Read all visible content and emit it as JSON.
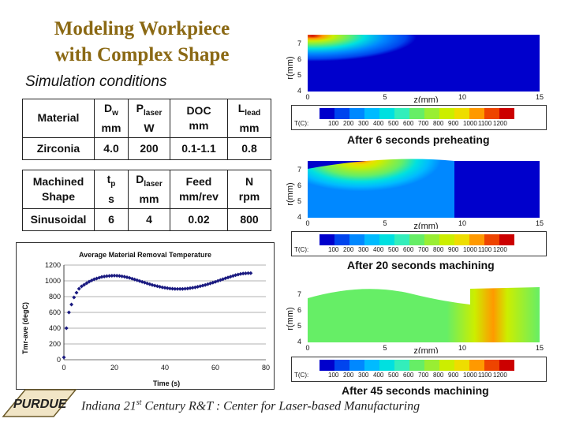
{
  "title": {
    "line1": "Modeling Workpiece",
    "line2": "with Complex Shape"
  },
  "subtitle": "Simulation conditions",
  "table1": {
    "headers": [
      "Material",
      "D",
      "w",
      "mm",
      "P",
      "laser",
      "W",
      "DOC",
      "mm",
      "L",
      "lead",
      "mm"
    ],
    "row": [
      "Zirconia",
      "4.0",
      "200",
      "0.1-1.1",
      "0.8"
    ]
  },
  "table2": {
    "h_machined": "Machined",
    "h_shape": "Shape",
    "h_t": "t",
    "h_t_sub": "p",
    "h_t_unit": "s",
    "h_d": "D",
    "h_d_sub": "laser",
    "h_d_unit": "mm",
    "h_feed": "Feed",
    "h_feed_unit": "mm/rev",
    "h_n": "N",
    "h_n_unit": "rpm",
    "row": [
      "Sinusoidal",
      "6",
      "4",
      "0.02",
      "800"
    ]
  },
  "chart_data": {
    "type": "scatter",
    "title": "Average Material Removal Temperature",
    "xlabel": "Time  (s)",
    "ylabel": "Tmr-ave (degC)",
    "xlim": [
      0,
      80
    ],
    "ylim": [
      0,
      1200
    ],
    "xticks": [
      "0",
      "20",
      "40",
      "60",
      "80"
    ],
    "yticks": [
      "0",
      "200",
      "400",
      "600",
      "800",
      "1000",
      "1200"
    ],
    "grid": "horizontal",
    "series": [
      {
        "x": [
          0,
          1,
          2,
          3,
          4,
          5,
          6,
          7,
          8,
          9,
          10,
          11,
          12,
          13,
          14,
          15,
          16,
          17,
          18,
          19,
          20,
          21,
          22,
          23,
          24,
          25,
          26,
          27,
          28,
          29,
          30,
          31,
          32,
          33,
          34,
          35,
          36,
          37,
          38,
          39,
          40,
          41,
          42,
          43,
          44,
          45,
          46,
          47,
          48,
          49,
          50,
          51,
          52,
          53,
          54,
          55,
          56,
          57,
          58,
          59,
          60,
          61,
          62,
          63,
          64,
          65,
          66,
          67,
          68,
          69,
          70,
          71,
          72,
          73,
          74
        ],
        "y": [
          30,
          400,
          600,
          700,
          790,
          850,
          900,
          930,
          950,
          970,
          990,
          1005,
          1020,
          1030,
          1040,
          1050,
          1055,
          1060,
          1063,
          1065,
          1066,
          1065,
          1062,
          1058,
          1052,
          1045,
          1037,
          1028,
          1018,
          1008,
          998,
          988,
          978,
          968,
          958,
          948,
          940,
          932,
          925,
          918,
          912,
          907,
          903,
          900,
          898,
          897,
          897,
          898,
          900,
          903,
          907,
          912,
          918,
          925,
          932,
          940,
          948,
          957,
          967,
          977,
          988,
          999,
          1010,
          1021,
          1032,
          1043,
          1053,
          1063,
          1072,
          1080,
          1087,
          1092,
          1095,
          1097,
          1098
        ]
      }
    ]
  },
  "contour_plots": {
    "ylabel": "r(mm)",
    "xlabel": "z(mm)",
    "yticks": [
      "7",
      "6",
      "5",
      "4"
    ],
    "xticks": [
      "0",
      "5",
      "10",
      "15"
    ],
    "colorbar_prefix": "T(C):",
    "colorbar_labels": [
      "100",
      "200",
      "300",
      "400",
      "500",
      "600",
      "700",
      "800",
      "900",
      "1000",
      "1100",
      "1200"
    ],
    "colorbar_colors": [
      "#0000cc",
      "#0044ee",
      "#0088ff",
      "#00bbff",
      "#00e0e0",
      "#33eebb",
      "#66ee66",
      "#99ee33",
      "#ccee00",
      "#eedd00",
      "#ff9900",
      "#ee4400",
      "#cc0000"
    ],
    "captions": [
      "After 6 seconds preheating",
      "After 20 seconds machining",
      "After 45 seconds machining"
    ]
  },
  "footer": {
    "pre": "Indiana 21",
    "sup": "st",
    "post": " Century R&T :  Center for Laser-based Manufacturing"
  },
  "logo_text": "PURDUE"
}
